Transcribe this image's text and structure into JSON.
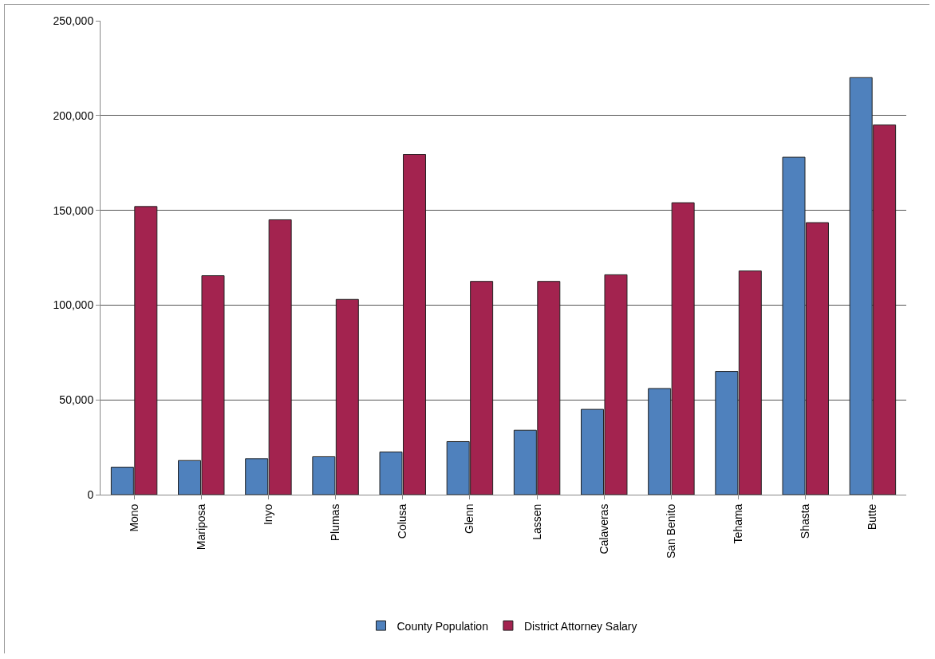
{
  "chart_data": {
    "type": "bar",
    "categories": [
      "Mono",
      "Mariposa",
      "Inyo",
      "Plumas",
      "Colusa",
      "Glenn",
      "Lassen",
      "Calaveras",
      "San Benito",
      "Tehama",
      "Shasta",
      "Butte"
    ],
    "series": [
      {
        "name": "County Population",
        "color": "#4f81bd",
        "values": [
          14500,
          18000,
          19000,
          20000,
          22500,
          28000,
          34000,
          45000,
          56000,
          65000,
          178000,
          220000
        ]
      },
      {
        "name": "District Attorney Salary",
        "color": "#a3234f",
        "values": [
          152000,
          115500,
          145000,
          103000,
          179500,
          112500,
          112500,
          116000,
          154000,
          118000,
          143500,
          195000
        ]
      }
    ],
    "ylim": [
      0,
      250000
    ],
    "yticks": [
      {
        "value": 0,
        "label": "0"
      },
      {
        "value": 50000,
        "label": "50,000"
      },
      {
        "value": 100000,
        "label": "100,000"
      },
      {
        "value": 150000,
        "label": "150,000"
      },
      {
        "value": 200000,
        "label": "200,000"
      },
      {
        "value": 250000,
        "label": "250,000"
      }
    ],
    "grid": "y",
    "legend": "bottom"
  }
}
